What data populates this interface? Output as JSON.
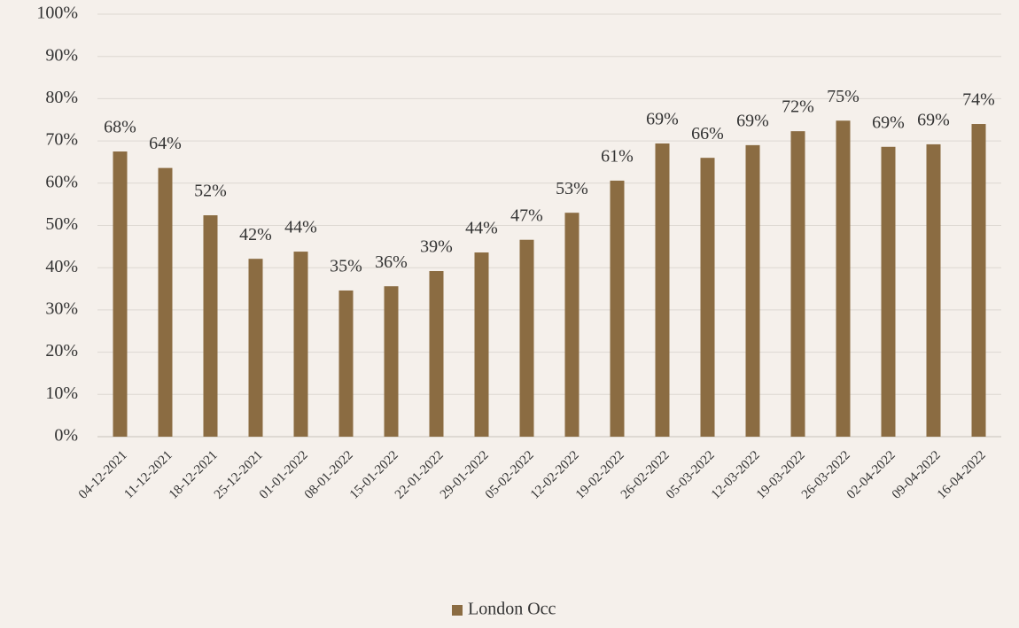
{
  "chart_data": {
    "type": "bar",
    "categories": [
      "04-12-2021",
      "11-12-2021",
      "18-12-2021",
      "25-12-2021",
      "01-01-2022",
      "08-01-2022",
      "15-01-2022",
      "22-01-2022",
      "29-01-2022",
      "05-02-2022",
      "12-02-2022",
      "19-02-2022",
      "26-02-2022",
      "05-03-2022",
      "12-03-2022",
      "19-03-2022",
      "26-03-2022",
      "02-04-2022",
      "09-04-2022",
      "16-04-2022"
    ],
    "series": [
      {
        "name": "London Occ",
        "color": "#8b6c42",
        "values": [
          67.5,
          63.6,
          52.4,
          42.1,
          43.8,
          34.6,
          35.6,
          39.2,
          43.6,
          46.6,
          53.0,
          60.6,
          69.4,
          66.0,
          69.0,
          72.3,
          74.8,
          68.6,
          69.2,
          74.0
        ],
        "value_labels": [
          "68%",
          "64%",
          "52%",
          "42%",
          "44%",
          "35%",
          "36%",
          "39%",
          "44%",
          "47%",
          "53%",
          "61%",
          "69%",
          "66%",
          "69%",
          "72%",
          "75%",
          "69%",
          "69%",
          "74%"
        ]
      }
    ],
    "ylim": [
      0,
      100
    ],
    "yticks": [
      {
        "value": 0,
        "label": "0%"
      },
      {
        "value": 10,
        "label": "10%"
      },
      {
        "value": 20,
        "label": "20%"
      },
      {
        "value": 30,
        "label": "30%"
      },
      {
        "value": 40,
        "label": "40%"
      },
      {
        "value": 50,
        "label": "50%"
      },
      {
        "value": 60,
        "label": "60%"
      },
      {
        "value": 70,
        "label": "70%"
      },
      {
        "value": 80,
        "label": "80%"
      },
      {
        "value": 90,
        "label": "90%"
      },
      {
        "value": 100,
        "label": "100%"
      }
    ],
    "grid": true,
    "legend": "bottom"
  }
}
